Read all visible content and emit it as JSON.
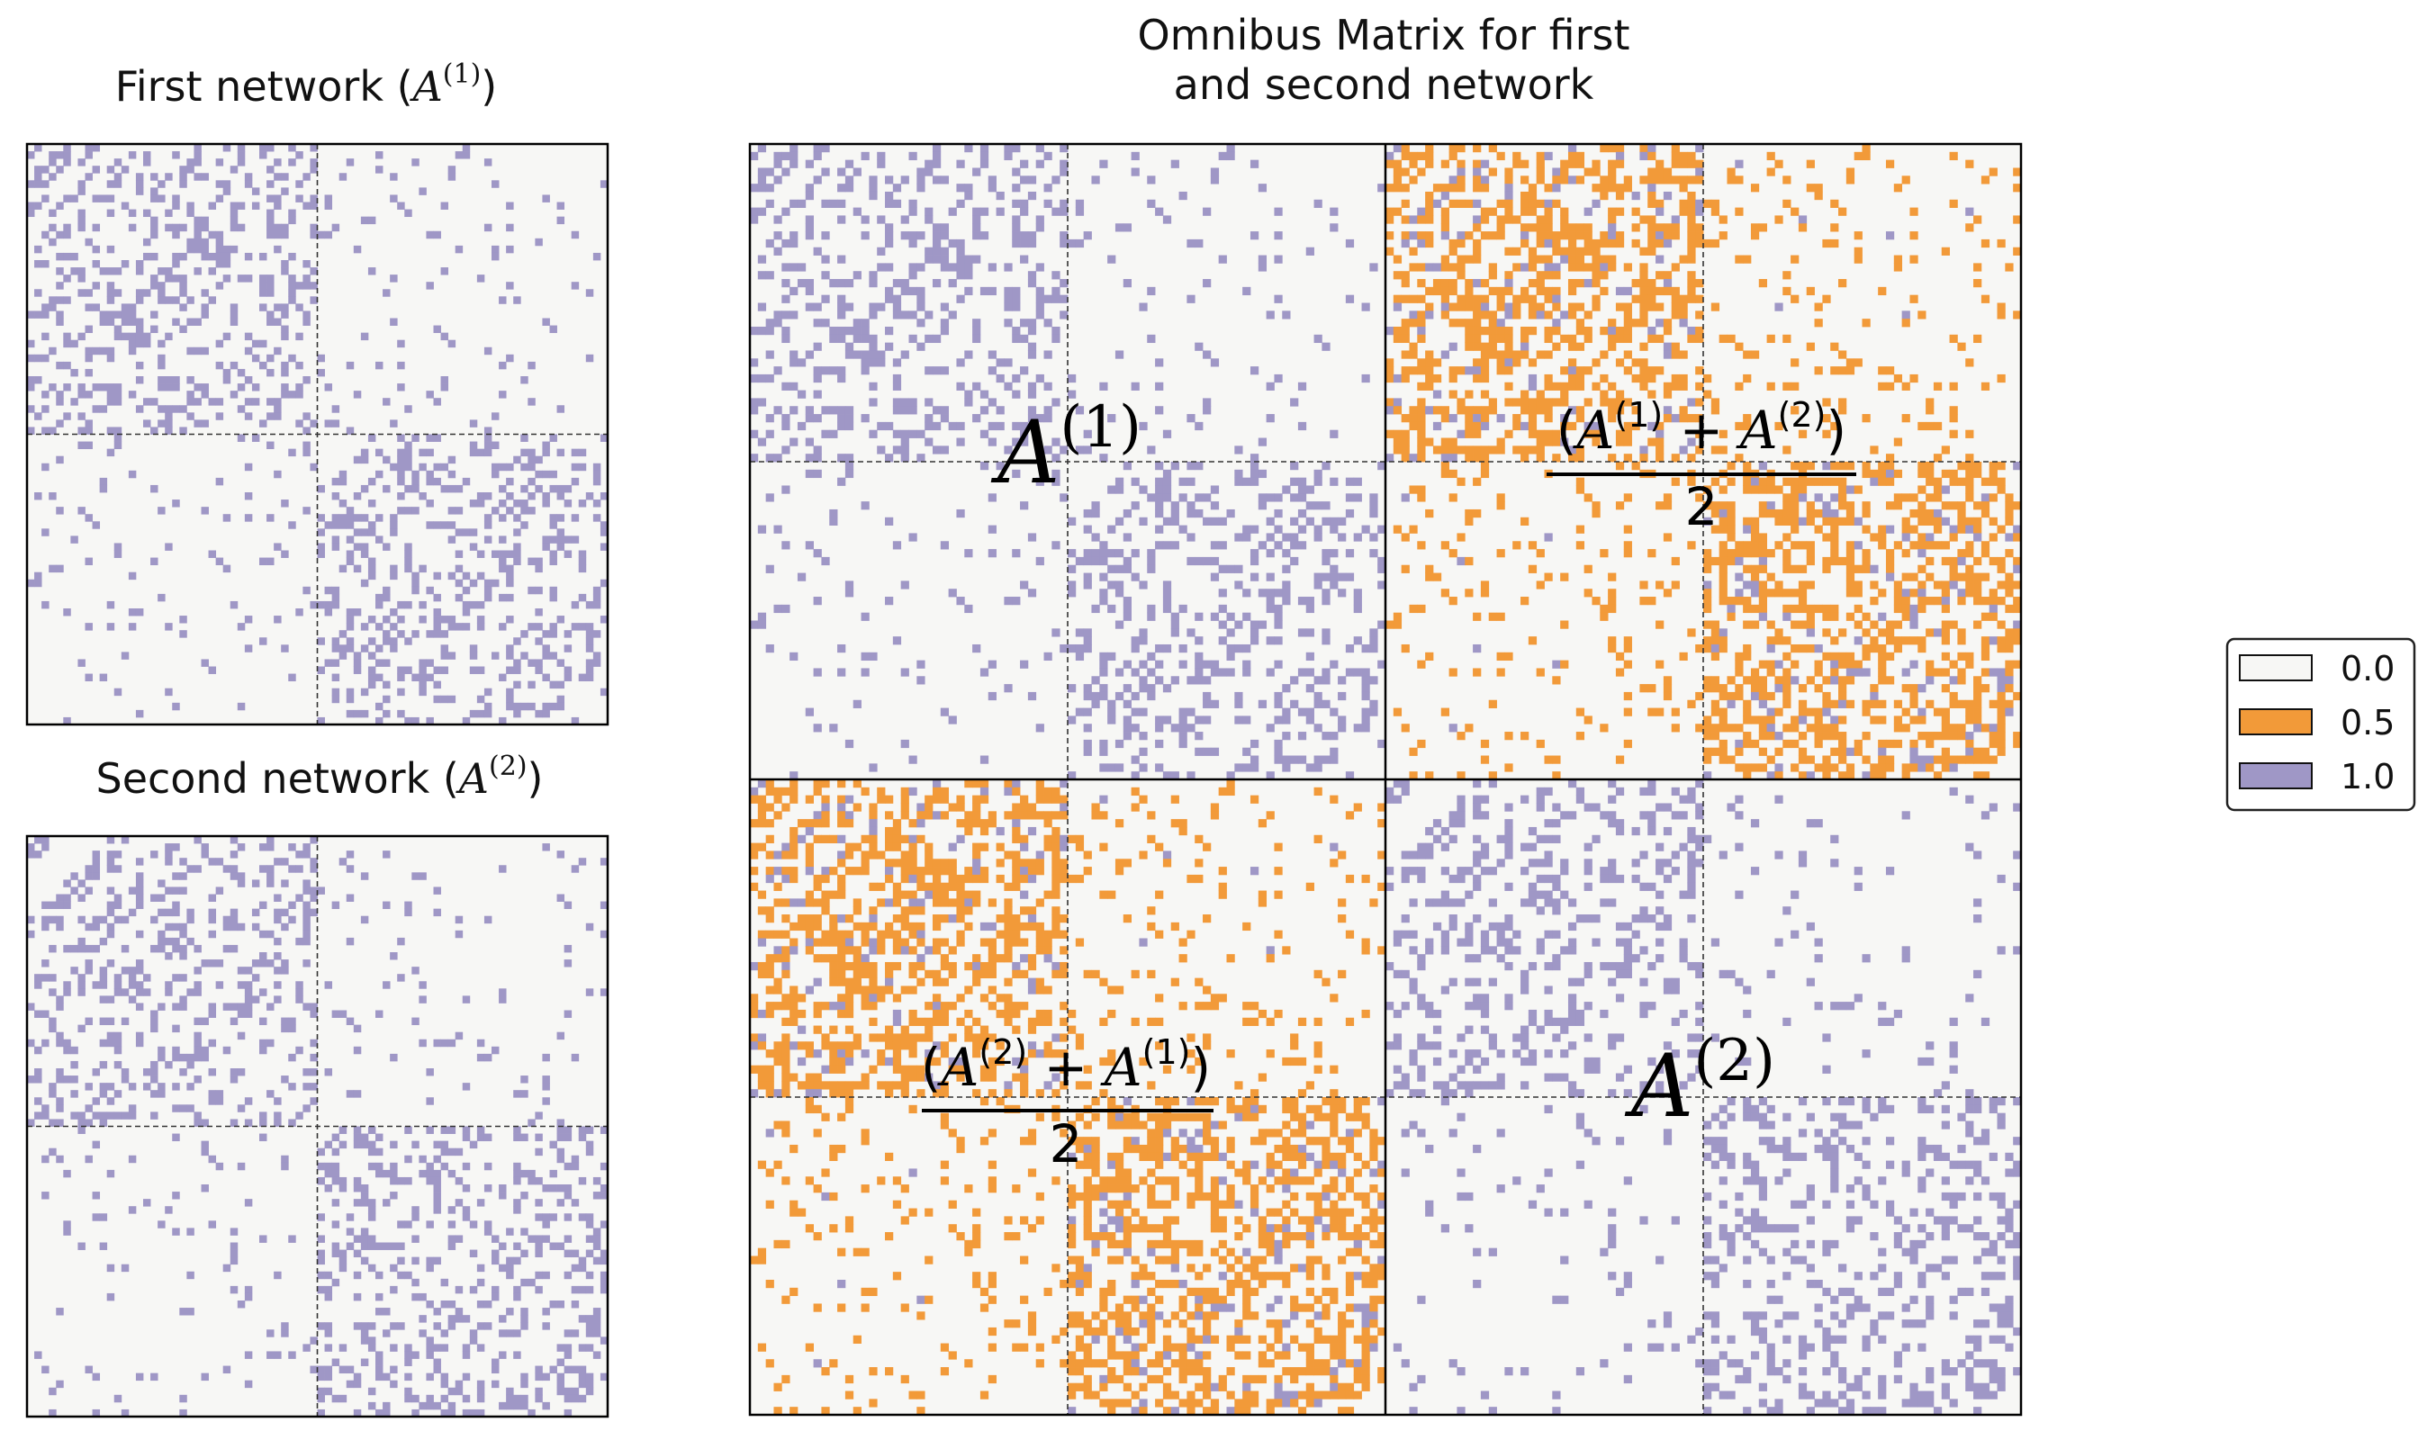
{
  "chart_data": [
    {
      "type": "heatmap",
      "title": {
        "prefix": "First network (",
        "symbol": "A",
        "sup": "(1)",
        "suffix": ")"
      },
      "n": 80,
      "blocks": [
        40,
        40
      ],
      "probabilities": {
        "within": 0.3,
        "between": 0.05
      },
      "values": [
        0.0,
        1.0
      ]
    },
    {
      "type": "heatmap",
      "title": {
        "prefix": "Second network (",
        "symbol": "A",
        "sup": "(2)",
        "suffix": ")"
      },
      "n": 80,
      "blocks": [
        40,
        40
      ],
      "probabilities": {
        "within": 0.3,
        "between": 0.05
      },
      "values": [
        0.0,
        1.0
      ]
    },
    {
      "type": "heatmap",
      "title_lines": [
        "Omnibus Matrix for first",
        "and second network"
      ],
      "n": 160,
      "blocks": [
        80,
        80
      ],
      "labels": {
        "top_left": {
          "symbol": "A",
          "sup": "(1)"
        },
        "bottom_right": {
          "symbol": "A",
          "sup": "(2)"
        },
        "top_right": {
          "open": "(",
          "a": "A",
          "s1": "(1)",
          "plus": " + ",
          "b": "A",
          "s2": "(2)",
          "close": ")",
          "denominator": "2"
        },
        "bottom_left": {
          "open": "(",
          "a": "A",
          "s1": "(2)",
          "plus": " + ",
          "b": "A",
          "s2": "(1)",
          "close": ")",
          "denominator": "2"
        }
      },
      "values": [
        0.0,
        0.5,
        1.0
      ]
    }
  ],
  "legend": {
    "position": "right",
    "entries": [
      {
        "label": "0.0",
        "color": "#f7f7f5"
      },
      {
        "label": "0.5",
        "color": "#f29a39"
      },
      {
        "label": "1.0",
        "color": "#9f97c6"
      }
    ]
  }
}
